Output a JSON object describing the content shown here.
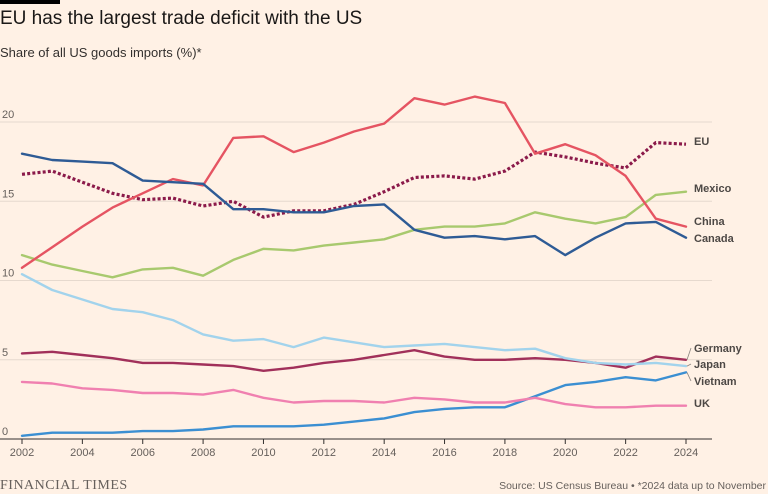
{
  "header": {
    "title": "EU has the largest trade deficit with the US",
    "subtitle": "Share of all US goods imports (%)*"
  },
  "footer": {
    "publisher": "FINANCIAL TIMES",
    "source": "Source: US Census Bureau • *2024 data up to November"
  },
  "chart_data": {
    "type": "line",
    "title": "EU has the largest trade deficit with the US",
    "ylabel": "Share of all US goods imports (%)*",
    "xlabel": "",
    "xlim": [
      2002,
      2024
    ],
    "ylim": [
      0,
      22
    ],
    "x_ticks": [
      "2002",
      "2004",
      "2006",
      "2008",
      "2010",
      "2012",
      "2014",
      "2016",
      "2018",
      "2020",
      "2022",
      "2024"
    ],
    "y_ticks": [
      "0",
      "5",
      "10",
      "15",
      "20"
    ],
    "legend_placement": "direct labels at right end of lines",
    "x": [
      2002,
      2003,
      2004,
      2005,
      2006,
      2007,
      2008,
      2009,
      2010,
      2011,
      2012,
      2013,
      2014,
      2015,
      2016,
      2017,
      2018,
      2019,
      2020,
      2021,
      2022,
      2023,
      2024
    ],
    "series": [
      {
        "name": "EU",
        "color": "#8b1a4a",
        "dash": "dotted",
        "values": [
          16.7,
          16.9,
          16.2,
          15.5,
          15.1,
          15.2,
          14.7,
          15.0,
          14.0,
          14.4,
          14.4,
          14.8,
          15.6,
          16.5,
          16.6,
          16.4,
          16.9,
          18.1,
          17.8,
          17.4,
          17.1,
          18.7,
          18.6
        ]
      },
      {
        "name": "Mexico",
        "color": "#a8c96e",
        "dash": "solid",
        "values": [
          11.6,
          11.0,
          10.6,
          10.2,
          10.7,
          10.8,
          10.3,
          11.3,
          12.0,
          11.9,
          12.2,
          12.4,
          12.6,
          13.2,
          13.4,
          13.4,
          13.6,
          14.3,
          13.9,
          13.6,
          14.0,
          15.4,
          15.6
        ]
      },
      {
        "name": "China",
        "color": "#e55462",
        "dash": "solid",
        "values": [
          10.8,
          12.1,
          13.4,
          14.6,
          15.5,
          16.4,
          16.0,
          19.0,
          19.1,
          18.1,
          18.7,
          19.4,
          19.9,
          21.5,
          21.1,
          21.6,
          21.2,
          18.0,
          18.6,
          17.9,
          16.6,
          13.9,
          13.4
        ]
      },
      {
        "name": "Canada",
        "color": "#2e5b95",
        "dash": "solid",
        "values": [
          18.0,
          17.6,
          17.5,
          17.4,
          16.3,
          16.2,
          16.1,
          14.5,
          14.5,
          14.3,
          14.3,
          14.7,
          14.8,
          13.2,
          12.7,
          12.8,
          12.6,
          12.8,
          11.6,
          12.7,
          13.6,
          13.7,
          12.7
        ]
      },
      {
        "name": "Germany",
        "color": "#a1305a",
        "dash": "solid",
        "values": [
          5.4,
          5.5,
          5.3,
          5.1,
          4.8,
          4.8,
          4.7,
          4.6,
          4.3,
          4.5,
          4.8,
          5.0,
          5.3,
          5.6,
          5.2,
          5.0,
          5.0,
          5.1,
          5.0,
          4.8,
          4.5,
          5.2,
          5.0
        ]
      },
      {
        "name": "Japan",
        "color": "#a2d3ec",
        "dash": "solid",
        "values": [
          10.4,
          9.4,
          8.8,
          8.2,
          8.0,
          7.5,
          6.6,
          6.2,
          6.3,
          5.8,
          6.4,
          6.1,
          5.8,
          5.9,
          6.0,
          5.8,
          5.6,
          5.7,
          5.1,
          4.8,
          4.7,
          4.8,
          4.6
        ]
      },
      {
        "name": "Vietnam",
        "color": "#3b8fd2",
        "dash": "solid",
        "values": [
          0.2,
          0.4,
          0.4,
          0.4,
          0.5,
          0.5,
          0.6,
          0.8,
          0.8,
          0.8,
          0.9,
          1.1,
          1.3,
          1.7,
          1.9,
          2.0,
          2.0,
          2.7,
          3.4,
          3.6,
          3.9,
          3.7,
          4.2
        ]
      },
      {
        "name": "UK",
        "color": "#f080b0",
        "dash": "solid",
        "values": [
          3.6,
          3.5,
          3.2,
          3.1,
          2.9,
          2.9,
          2.8,
          3.1,
          2.6,
          2.3,
          2.4,
          2.4,
          2.3,
          2.6,
          2.5,
          2.3,
          2.3,
          2.6,
          2.2,
          2.0,
          2.0,
          2.1,
          2.1
        ]
      }
    ]
  }
}
